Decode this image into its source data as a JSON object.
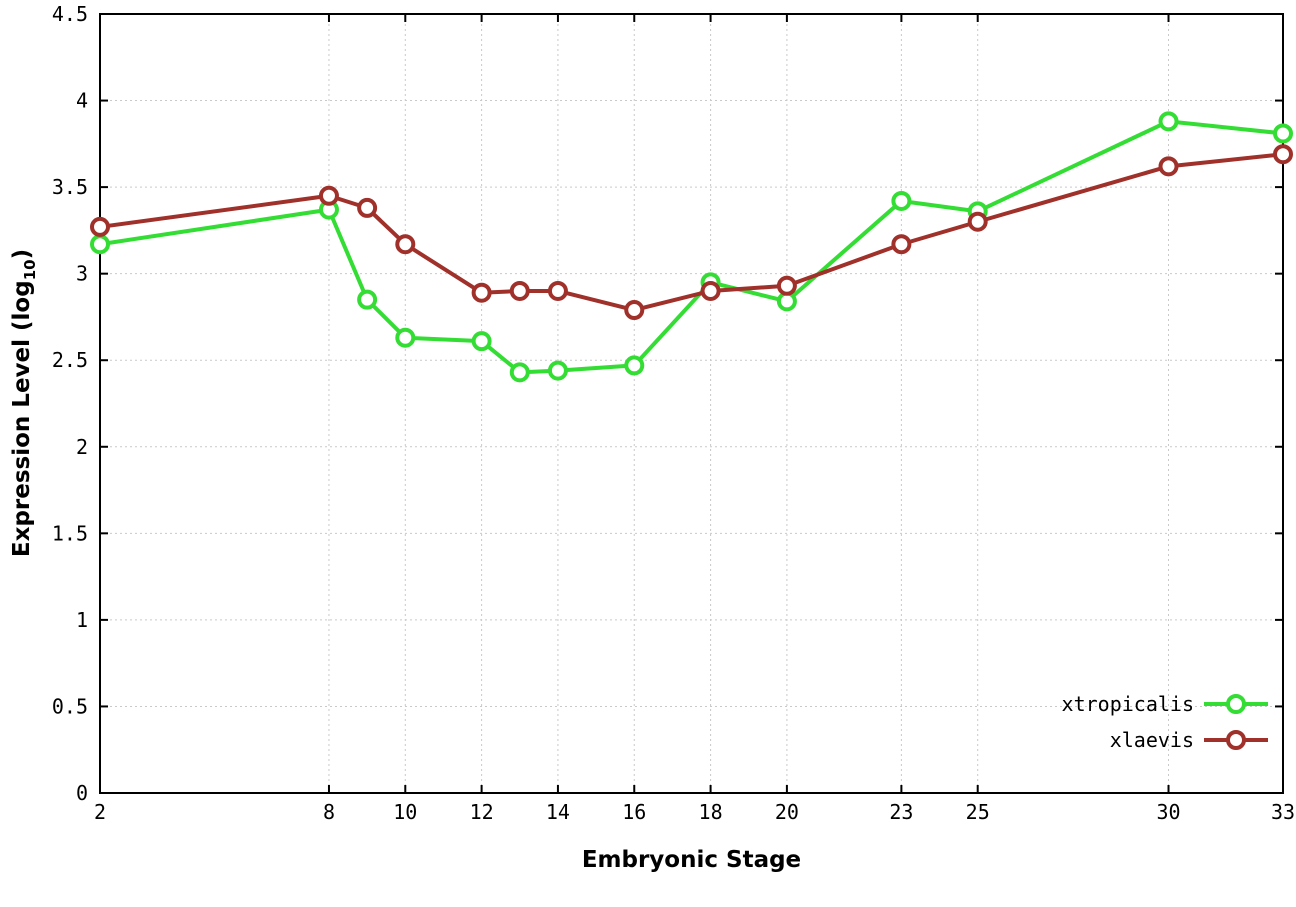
{
  "chart_data": {
    "type": "line",
    "title": "",
    "xlabel": "Embryonic Stage",
    "ylabel_prefix": "Expression Level (log",
    "ylabel_sub": "10",
    "ylabel_suffix": ")",
    "x": [
      2,
      8,
      9,
      10,
      12,
      13,
      14,
      16,
      18,
      20,
      23,
      25,
      30,
      33
    ],
    "xticks": [
      2,
      8,
      10,
      12,
      14,
      16,
      18,
      20,
      23,
      25,
      30,
      33
    ],
    "yticks": [
      0,
      0.5,
      1,
      1.5,
      2,
      2.5,
      3,
      3.5,
      4,
      4.5
    ],
    "xlim": [
      2,
      33
    ],
    "ylim": [
      0,
      4.5
    ],
    "grid": true,
    "legend_position": "bottom-right",
    "series": [
      {
        "name": "xtropicalis",
        "color": "#33dd33",
        "values": [
          3.17,
          3.37,
          2.85,
          2.63,
          2.61,
          2.43,
          2.44,
          2.47,
          2.95,
          2.84,
          3.42,
          3.36,
          3.88,
          3.81
        ]
      },
      {
        "name": "xlaevis",
        "color": "#a0302a",
        "values": [
          3.27,
          3.45,
          3.38,
          3.17,
          2.89,
          2.9,
          2.9,
          2.79,
          2.9,
          2.93,
          3.17,
          3.3,
          3.62,
          3.69
        ]
      }
    ]
  },
  "colors": {
    "background": "#ffffff",
    "grid": "#c9c9c9",
    "axis": "#000000",
    "marker_fill": "#ffffff"
  }
}
